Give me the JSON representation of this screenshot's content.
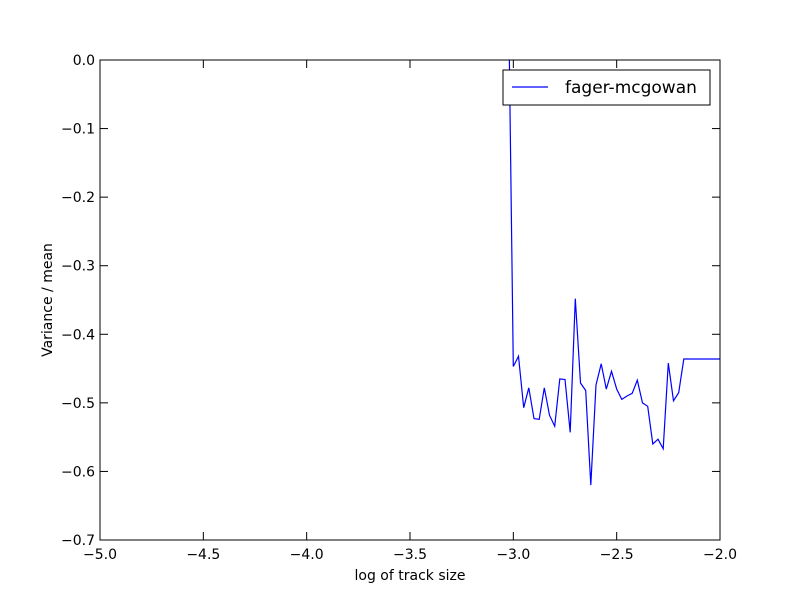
{
  "chart_data": {
    "type": "line",
    "title": "",
    "xlabel": "log of track size",
    "ylabel": "Variance / mean",
    "xlim": [
      -5.0,
      -2.0
    ],
    "ylim": [
      -0.7,
      0.0
    ],
    "xticks": [
      "−5.0",
      "−4.5",
      "−4.0",
      "−3.5",
      "−3.0",
      "−2.5",
      "−2.0"
    ],
    "xtick_values": [
      -5.0,
      -4.5,
      -4.0,
      -3.5,
      -3.0,
      -2.5,
      -2.0
    ],
    "yticks": [
      "0.0",
      "−0.1",
      "−0.2",
      "−0.3",
      "−0.4",
      "−0.5",
      "−0.6",
      "−0.7"
    ],
    "ytick_values": [
      0.0,
      -0.1,
      -0.2,
      -0.3,
      -0.4,
      -0.5,
      -0.6,
      -0.7
    ],
    "grid": false,
    "legend_position": "top-right",
    "series": [
      {
        "name": "fager-mcgowan",
        "color": "#0000ff",
        "x": [
          -3.02,
          -3.0,
          -2.975,
          -2.95,
          -2.925,
          -2.9,
          -2.875,
          -2.85,
          -2.825,
          -2.8,
          -2.775,
          -2.75,
          -2.725,
          -2.7,
          -2.675,
          -2.65,
          -2.625,
          -2.6,
          -2.575,
          -2.55,
          -2.525,
          -2.5,
          -2.475,
          -2.45,
          -2.425,
          -2.4,
          -2.375,
          -2.35,
          -2.325,
          -2.3,
          -2.275,
          -2.25,
          -2.225,
          -2.2,
          -2.175,
          -2.15,
          -2.125,
          -2.1,
          -2.075,
          -2.05,
          -2.025,
          -2.0
        ],
        "y": [
          0.02,
          -0.447,
          -0.432,
          -0.507,
          -0.478,
          -0.523,
          -0.524,
          -0.478,
          -0.518,
          -0.534,
          -0.465,
          -0.466,
          -0.543,
          -0.348,
          -0.471,
          -0.482,
          -0.62,
          -0.474,
          -0.443,
          -0.48,
          -0.454,
          -0.48,
          -0.495,
          -0.49,
          -0.486,
          -0.467,
          -0.5,
          -0.505,
          -0.56,
          -0.553,
          -0.567,
          -0.442,
          -0.497,
          -0.485,
          -0.436,
          -0.436,
          -0.436,
          -0.436,
          -0.436,
          -0.436,
          -0.436,
          -0.436
        ]
      }
    ]
  }
}
